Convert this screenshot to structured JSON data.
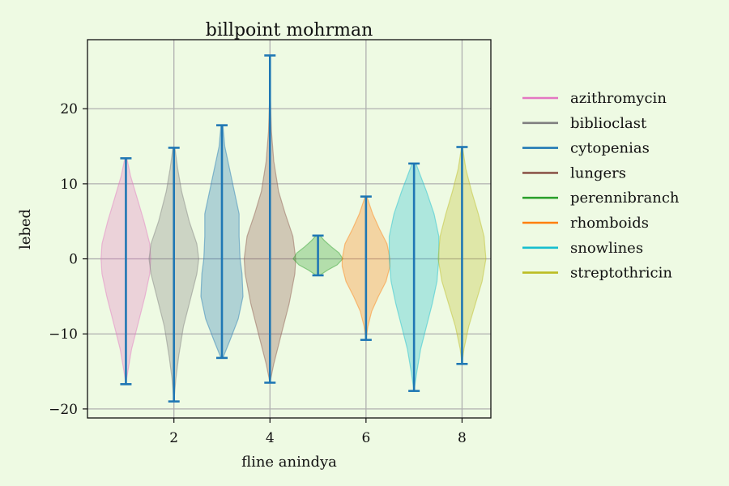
{
  "chart_data": {
    "type": "violin",
    "title": "billpoint mohrman",
    "xlabel": "fline anindya",
    "ylabel": "lebed",
    "xlim": [
      0.2,
      8.6
    ],
    "ylim": [
      -21.2,
      29.2
    ],
    "x_ticks": [
      2,
      4,
      6,
      8
    ],
    "y_ticks": [
      -20,
      -10,
      0,
      10,
      20
    ],
    "grid": true,
    "legend_position": "right-outside",
    "series": [
      {
        "name": "azithromycin",
        "x": 1,
        "min": -16.7,
        "max": 13.4,
        "color": "#e377c2",
        "profile": [
          [
            -16.7,
            0.0
          ],
          [
            -15.0,
            0.02
          ],
          [
            -12.0,
            0.06
          ],
          [
            -9.0,
            0.12
          ],
          [
            -5.0,
            0.2
          ],
          [
            -2.0,
            0.25
          ],
          [
            0.0,
            0.26
          ],
          [
            2.0,
            0.25
          ],
          [
            5.0,
            0.19
          ],
          [
            8.0,
            0.12
          ],
          [
            11.0,
            0.05
          ],
          [
            13.4,
            0.01
          ]
        ]
      },
      {
        "name": "biblioclast",
        "x": 2,
        "min": -19.0,
        "max": 14.8,
        "color": "#7f7f7f",
        "profile": [
          [
            -19.0,
            0.0
          ],
          [
            -16.0,
            0.02
          ],
          [
            -13.0,
            0.05
          ],
          [
            -9.0,
            0.1
          ],
          [
            -5.0,
            0.18
          ],
          [
            -2.0,
            0.24
          ],
          [
            0.0,
            0.26
          ],
          [
            2.0,
            0.24
          ],
          [
            5.0,
            0.16
          ],
          [
            9.0,
            0.08
          ],
          [
            12.0,
            0.04
          ],
          [
            14.8,
            0.01
          ]
        ]
      },
      {
        "name": "cytopenias",
        "x": 3,
        "min": -13.2,
        "max": 17.8,
        "color": "#1f77b4",
        "profile": [
          [
            -13.2,
            0.01
          ],
          [
            -11.0,
            0.08
          ],
          [
            -8.0,
            0.17
          ],
          [
            -5.0,
            0.22
          ],
          [
            -2.0,
            0.21
          ],
          [
            0.0,
            0.19
          ],
          [
            3.0,
            0.18
          ],
          [
            6.0,
            0.18
          ],
          [
            9.0,
            0.13
          ],
          [
            12.0,
            0.08
          ],
          [
            15.0,
            0.03
          ],
          [
            17.8,
            0.01
          ]
        ]
      },
      {
        "name": "lungers",
        "x": 4,
        "min": -16.5,
        "max": 27.1,
        "color": "#8c564b",
        "profile": [
          [
            -16.5,
            0.0
          ],
          [
            -14.0,
            0.04
          ],
          [
            -10.0,
            0.12
          ],
          [
            -6.0,
            0.2
          ],
          [
            -2.0,
            0.26
          ],
          [
            0.0,
            0.27
          ],
          [
            3.0,
            0.24
          ],
          [
            6.0,
            0.16
          ],
          [
            9.0,
            0.09
          ],
          [
            13.0,
            0.04
          ],
          [
            17.0,
            0.015
          ],
          [
            21.0,
            0.005
          ],
          [
            27.1,
            0.0
          ]
        ]
      },
      {
        "name": "perennibranch",
        "x": 5,
        "min": -2.2,
        "max": 3.1,
        "color": "#2ca02c",
        "profile": [
          [
            -2.2,
            0.02
          ],
          [
            -1.5,
            0.1
          ],
          [
            -0.8,
            0.2
          ],
          [
            0.0,
            0.26
          ],
          [
            0.8,
            0.22
          ],
          [
            1.6,
            0.14
          ],
          [
            2.4,
            0.07
          ],
          [
            3.1,
            0.02
          ]
        ]
      },
      {
        "name": "rhomboids",
        "x": 6,
        "min": -10.8,
        "max": 8.3,
        "color": "#ff7f0e",
        "profile": [
          [
            -10.8,
            0.0
          ],
          [
            -9.0,
            0.02
          ],
          [
            -7.0,
            0.06
          ],
          [
            -5.0,
            0.13
          ],
          [
            -3.0,
            0.21
          ],
          [
            -1.0,
            0.25
          ],
          [
            0.0,
            0.25
          ],
          [
            2.0,
            0.22
          ],
          [
            4.0,
            0.14
          ],
          [
            6.0,
            0.07
          ],
          [
            7.5,
            0.03
          ],
          [
            8.3,
            0.01
          ]
        ]
      },
      {
        "name": "snowlines",
        "x": 7,
        "min": -17.6,
        "max": 12.7,
        "color": "#17becf",
        "profile": [
          [
            -17.6,
            0.0
          ],
          [
            -15.0,
            0.03
          ],
          [
            -12.0,
            0.07
          ],
          [
            -9.0,
            0.13
          ],
          [
            -6.0,
            0.19
          ],
          [
            -3.0,
            0.24
          ],
          [
            0.0,
            0.26
          ],
          [
            3.0,
            0.26
          ],
          [
            6.0,
            0.21
          ],
          [
            9.0,
            0.13
          ],
          [
            11.0,
            0.07
          ],
          [
            12.7,
            0.02
          ]
        ]
      },
      {
        "name": "streptothricin",
        "x": 8,
        "min": -14.0,
        "max": 14.9,
        "color": "#bcbd22",
        "profile": [
          [
            -14.0,
            0.0
          ],
          [
            -12.0,
            0.02
          ],
          [
            -9.0,
            0.07
          ],
          [
            -6.0,
            0.14
          ],
          [
            -3.0,
            0.21
          ],
          [
            0.0,
            0.25
          ],
          [
            3.0,
            0.23
          ],
          [
            6.0,
            0.17
          ],
          [
            9.0,
            0.1
          ],
          [
            12.0,
            0.04
          ],
          [
            14.9,
            0.005
          ]
        ]
      }
    ]
  },
  "style": {
    "background": "#eefae3",
    "grid_color": "#b0b0b0",
    "whisker_color": "#1f77b4",
    "axis_color": "#111111"
  }
}
